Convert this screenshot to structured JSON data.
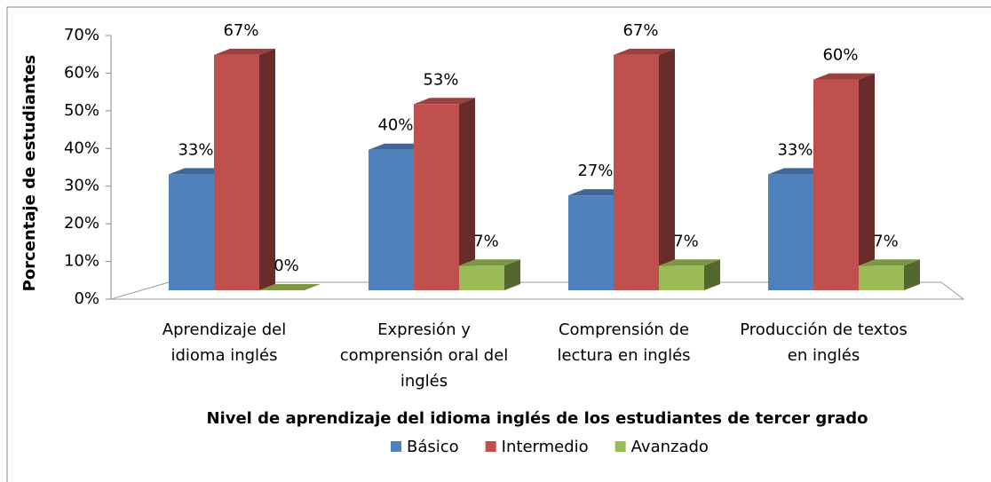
{
  "chart_data": {
    "type": "bar3d",
    "x_label": "Nivel de aprendizaje del idioma inglés de los estudiantes de tercer grado",
    "y_label": "Porcentaje de estudiantes",
    "categories": [
      "Aprendizaje del idioma inglés",
      "Expresión y comprensión oral del inglés",
      "Comprensión de lectura en inglés",
      "Producción de textos en inglés"
    ],
    "series": [
      {
        "name": "Básico",
        "color": "#4f81bd",
        "values": [
          33,
          40,
          27,
          33
        ],
        "value_labels": [
          "33%",
          "40%",
          "27%",
          "33%"
        ]
      },
      {
        "name": "Intermedio",
        "color": "#c0504d",
        "values": [
          67,
          53,
          67,
          60
        ],
        "value_labels": [
          "67%",
          "53%",
          "67%",
          "60%"
        ]
      },
      {
        "name": "Avanzado",
        "color": "#9bbb59",
        "values": [
          0,
          7,
          7,
          7
        ],
        "value_labels": [
          "0%",
          "7%",
          "7%",
          "7%"
        ]
      }
    ],
    "ylim": [
      0,
      70
    ],
    "yticks": [
      {
        "value": 0,
        "label": "0%"
      },
      {
        "value": 10,
        "label": "10%"
      },
      {
        "value": 20,
        "label": "20%"
      },
      {
        "value": 30,
        "label": "30%"
      },
      {
        "value": 40,
        "label": "40%"
      },
      {
        "value": 50,
        "label": "50%"
      },
      {
        "value": 60,
        "label": "60%"
      },
      {
        "value": 70,
        "label": "70%"
      }
    ],
    "legend": "bottom"
  }
}
